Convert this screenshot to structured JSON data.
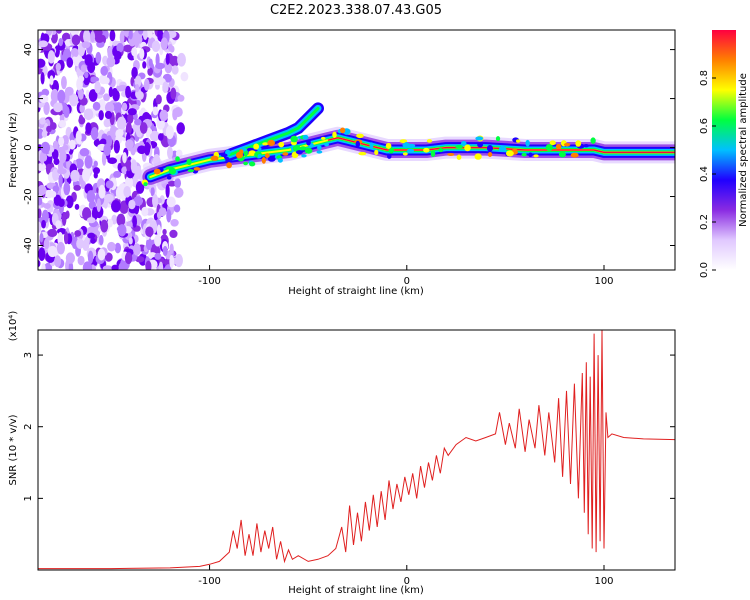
{
  "figure": {
    "title": "C2E2.2023.338.07.43.G05"
  },
  "chart_data": [
    {
      "type": "heatmap",
      "title": "C2E2.2023.338.07.43.G05",
      "xlabel": "Height of straight line (km)",
      "ylabel": "Frequency (Hz)",
      "xlim": [
        -187,
        136
      ],
      "ylim": [
        -50,
        48
      ],
      "x_ticks": [
        -100,
        0,
        100
      ],
      "y_ticks": [
        -40,
        -20,
        0,
        20,
        40
      ],
      "colorbar": {
        "label": "Normalized spectral amplitude",
        "range": [
          0,
          1
        ],
        "ticks": [
          0.0,
          0.2,
          0.4,
          0.6,
          0.8
        ],
        "tick_labels": [
          "0.0",
          "0.2",
          "0.4",
          "0.6",
          "0.8"
        ],
        "colormap": [
          "#ffffff",
          "#e0c8ff",
          "#8a2be2",
          "#2000ff",
          "#00c0ff",
          "#00ff40",
          "#ffff00",
          "#ff8000",
          "#ff0040"
        ]
      },
      "ridge": {
        "x": [
          -130,
          -120,
          -110,
          -100,
          -90,
          -80,
          -70,
          -60,
          -50,
          -40,
          -35,
          -30,
          -20,
          -10,
          0,
          10,
          20,
          40,
          60,
          80,
          90,
          95,
          100,
          120,
          136
        ],
        "frequency": [
          -12,
          -9,
          -7,
          -5,
          -4,
          -3,
          -2,
          -1,
          1,
          3,
          4,
          3,
          1,
          -1,
          -1,
          -1,
          0,
          0,
          -1,
          -1,
          -1,
          -1,
          -2,
          -2,
          -2
        ]
      },
      "branch": {
        "x": [
          -90,
          -80,
          -70,
          -60,
          -55,
          -50,
          -45
        ],
        "frequency": [
          -3,
          0,
          3,
          6,
          8,
          12,
          16
        ]
      },
      "noise_region_x": [
        -187,
        -112
      ]
    },
    {
      "type": "line",
      "xlabel": "Height of straight line (km)",
      "ylabel": "SNR (10 * v/v)",
      "y_scale_label": "(x10⁴)",
      "xlim": [
        -187,
        136
      ],
      "ylim": [
        0,
        3.35
      ],
      "x_ticks": [
        -100,
        0,
        100
      ],
      "y_ticks": [
        1,
        2,
        3
      ],
      "series": [
        {
          "color": "#e02020",
          "x": [
            -187,
            -150,
            -120,
            -105,
            -100,
            -95,
            -90,
            -88,
            -86,
            -84,
            -82,
            -80,
            -78,
            -76,
            -74,
            -72,
            -70,
            -68,
            -66,
            -64,
            -62,
            -60,
            -58,
            -55,
            -50,
            -45,
            -40,
            -36,
            -33,
            -31,
            -29,
            -27,
            -25,
            -23,
            -21,
            -19,
            -17,
            -15,
            -13,
            -11,
            -9,
            -7,
            -5,
            -3,
            -1,
            1,
            3,
            5,
            7,
            9,
            11,
            13,
            15,
            17,
            19,
            21,
            25,
            30,
            35,
            40,
            45,
            47,
            50,
            52,
            55,
            57,
            60,
            62,
            65,
            67,
            70,
            72,
            75,
            77,
            79,
            81,
            83,
            85,
            87,
            89,
            90,
            91,
            92,
            93,
            94,
            95,
            96,
            97,
            98,
            99,
            100,
            101,
            102,
            104,
            110,
            120,
            136
          ],
          "values": [
            0.02,
            0.02,
            0.03,
            0.05,
            0.08,
            0.12,
            0.25,
            0.55,
            0.3,
            0.7,
            0.2,
            0.5,
            0.2,
            0.65,
            0.25,
            0.55,
            0.3,
            0.6,
            0.15,
            0.4,
            0.12,
            0.28,
            0.15,
            0.2,
            0.12,
            0.15,
            0.2,
            0.3,
            0.6,
            0.25,
            0.9,
            0.35,
            0.8,
            0.4,
            0.95,
            0.55,
            1.05,
            0.6,
            1.1,
            0.7,
            1.25,
            0.85,
            1.2,
            0.95,
            1.3,
            1.05,
            1.35,
            1.0,
            1.45,
            1.15,
            1.5,
            1.25,
            1.6,
            1.35,
            1.7,
            1.6,
            1.75,
            1.85,
            1.8,
            1.85,
            1.9,
            2.2,
            1.75,
            2.05,
            1.7,
            2.25,
            1.65,
            2.1,
            1.7,
            2.3,
            1.6,
            2.2,
            1.5,
            2.4,
            1.3,
            2.5,
            1.2,
            2.6,
            1.0,
            2.75,
            0.8,
            2.9,
            0.5,
            2.7,
            0.3,
            3.3,
            0.25,
            3.0,
            0.4,
            3.35,
            0.3,
            2.2,
            1.85,
            1.9,
            1.85,
            1.83,
            1.82
          ]
        }
      ]
    }
  ]
}
